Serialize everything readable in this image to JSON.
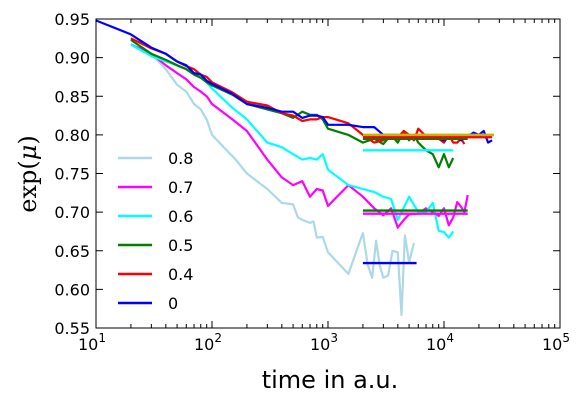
{
  "chart_data": {
    "type": "line",
    "xscale": "log",
    "xlim": [
      10,
      100000
    ],
    "ylim": [
      0.55,
      0.95
    ],
    "xlabel": "time in a.u.",
    "ylabel": "exp(μ)",
    "xticks": [
      {
        "value": 10,
        "label": "10",
        "exp": "1"
      },
      {
        "value": 100,
        "label": "10",
        "exp": "2"
      },
      {
        "value": 1000,
        "label": "10",
        "exp": "3"
      },
      {
        "value": 10000,
        "label": "10",
        "exp": "4"
      },
      {
        "value": 100000,
        "label": "10",
        "exp": "5"
      }
    ],
    "yticks": [
      {
        "value": 0.55,
        "label": "0.55"
      },
      {
        "value": 0.6,
        "label": "0.60"
      },
      {
        "value": 0.65,
        "label": "0.65"
      },
      {
        "value": 0.7,
        "label": "0.70"
      },
      {
        "value": 0.75,
        "label": "0.75"
      },
      {
        "value": 0.8,
        "label": "0.80"
      },
      {
        "value": 0.85,
        "label": "0.85"
      },
      {
        "value": 0.9,
        "label": "0.90"
      },
      {
        "value": 0.95,
        "label": "0.95"
      }
    ],
    "grid": false,
    "legend_position": "lower-left",
    "series": [
      {
        "name": "0.8",
        "color": "#add8e6",
        "x": [
          20,
          30,
          40,
          50,
          60,
          70,
          80,
          90,
          100,
          130,
          160,
          200,
          300,
          400,
          500,
          550,
          600,
          700,
          750,
          800,
          900,
          1000,
          1500,
          2000,
          2200,
          2400,
          2600,
          2800,
          3000,
          3300,
          3600,
          4000,
          4300,
          4600,
          5000,
          5500
        ],
        "y": [
          0.917,
          0.905,
          0.885,
          0.865,
          0.856,
          0.84,
          0.833,
          0.82,
          0.8,
          0.782,
          0.768,
          0.75,
          0.73,
          0.712,
          0.71,
          0.693,
          0.69,
          0.686,
          0.688,
          0.667,
          0.668,
          0.648,
          0.62,
          0.673,
          0.632,
          0.615,
          0.663,
          0.63,
          0.615,
          0.618,
          0.65,
          0.648,
          0.567,
          0.67,
          0.635,
          0.66
        ]
      },
      {
        "name": "0.7",
        "color": "#ff00ff",
        "x": [
          20,
          30,
          40,
          50,
          60,
          70,
          80,
          90,
          100,
          150,
          200,
          300,
          400,
          500,
          600,
          700,
          800,
          900,
          1000,
          1500,
          2000,
          2500,
          3000,
          3500,
          4000,
          4500,
          5000,
          6000,
          7000,
          8000,
          9000,
          10000,
          11000,
          12000,
          13000,
          14000,
          15000,
          16000
        ],
        "y": [
          0.917,
          0.905,
          0.89,
          0.88,
          0.872,
          0.862,
          0.856,
          0.85,
          0.84,
          0.82,
          0.805,
          0.768,
          0.745,
          0.735,
          0.74,
          0.72,
          0.73,
          0.728,
          0.708,
          0.735,
          0.72,
          0.705,
          0.696,
          0.705,
          0.68,
          0.69,
          0.697,
          0.698,
          0.705,
          0.7,
          0.695,
          0.705,
          0.683,
          0.693,
          0.713,
          0.707,
          0.7,
          0.722
        ]
      },
      {
        "name": "0.6",
        "color": "#00ffff",
        "x": [
          20,
          30,
          40,
          50,
          60,
          70,
          80,
          90,
          100,
          150,
          200,
          300,
          400,
          500,
          600,
          700,
          800,
          900,
          1000,
          1500,
          2000,
          2500,
          3000,
          3500,
          4000,
          5000,
          6000,
          7000,
          8000,
          9000,
          10000,
          11000,
          12000
        ],
        "y": [
          0.917,
          0.902,
          0.895,
          0.89,
          0.885,
          0.88,
          0.874,
          0.868,
          0.86,
          0.835,
          0.82,
          0.79,
          0.784,
          0.775,
          0.768,
          0.77,
          0.768,
          0.775,
          0.755,
          0.735,
          0.73,
          0.726,
          0.72,
          0.717,
          0.69,
          0.72,
          0.7,
          0.7,
          0.712,
          0.676,
          0.674,
          0.667,
          0.675
        ]
      },
      {
        "name": "0.5",
        "color": "#008000",
        "x": [
          20,
          30,
          40,
          50,
          60,
          70,
          80,
          90,
          100,
          150,
          200,
          300,
          400,
          500,
          600,
          700,
          800,
          900,
          1000,
          1500,
          2000,
          2500,
          3000,
          3500,
          4000,
          4500,
          5000,
          5500,
          6000,
          7000,
          8000,
          9000,
          10000,
          11000,
          12000
        ],
        "y": [
          0.923,
          0.905,
          0.897,
          0.89,
          0.885,
          0.878,
          0.874,
          0.868,
          0.864,
          0.852,
          0.84,
          0.833,
          0.828,
          0.822,
          0.83,
          0.826,
          0.826,
          0.82,
          0.808,
          0.8,
          0.79,
          0.795,
          0.788,
          0.8,
          0.79,
          0.805,
          0.793,
          0.8,
          0.79,
          0.78,
          0.775,
          0.758,
          0.775,
          0.758,
          0.77
        ]
      },
      {
        "name": "0.4",
        "color": "#ff0000",
        "x": [
          20,
          30,
          40,
          50,
          60,
          70,
          80,
          90,
          100,
          150,
          200,
          300,
          400,
          500,
          600,
          700,
          800,
          900,
          1000,
          1500,
          2000,
          2500,
          3000,
          3500,
          4000,
          4500,
          5000,
          5500,
          6000,
          7000,
          8000,
          9000,
          10000,
          11000,
          12000,
          13000,
          14000,
          15000
        ],
        "y": [
          0.925,
          0.912,
          0.905,
          0.895,
          0.889,
          0.885,
          0.878,
          0.875,
          0.868,
          0.855,
          0.843,
          0.838,
          0.828,
          0.825,
          0.818,
          0.82,
          0.82,
          0.823,
          0.823,
          0.815,
          0.8,
          0.79,
          0.793,
          0.8,
          0.797,
          0.805,
          0.8,
          0.793,
          0.808,
          0.798,
          0.8,
          0.795,
          0.79,
          0.8,
          0.79,
          0.79,
          0.795,
          0.788
        ]
      },
      {
        "name": "0",
        "color": "#0000ff",
        "x": [
          10,
          20,
          30,
          40,
          50,
          60,
          70,
          80,
          90,
          100,
          150,
          200,
          300,
          400,
          500,
          600,
          700,
          800,
          900,
          1000,
          1500,
          2000,
          2500,
          3000,
          4000,
          5000,
          6000,
          7000,
          8000,
          10000,
          12000,
          14000,
          16000,
          18000,
          20000,
          22000,
          24000,
          26000
        ],
        "y": [
          0.948,
          0.93,
          0.913,
          0.905,
          0.895,
          0.89,
          0.88,
          0.878,
          0.87,
          0.866,
          0.853,
          0.84,
          0.835,
          0.83,
          0.83,
          0.822,
          0.825,
          0.825,
          0.823,
          0.813,
          0.813,
          0.81,
          0.81,
          0.8,
          0.8,
          0.795,
          0.795,
          0.795,
          0.798,
          0.793,
          0.8,
          0.793,
          0.798,
          0.803,
          0.8,
          0.805,
          0.79,
          0.793
        ]
      }
    ],
    "plateaus": [
      {
        "color": "#0000ff",
        "x": [
          2000,
          5800
        ],
        "y": 0.634
      },
      {
        "color": "#ff00ff",
        "x": [
          2000,
          16000
        ],
        "y": 0.698
      },
      {
        "color": "#008000",
        "x": [
          2000,
          16000
        ],
        "y": 0.702
      },
      {
        "color": "#00ffff",
        "x": [
          2000,
          12000
        ],
        "y": 0.78
      },
      {
        "color": "#008000",
        "x": [
          2000,
          16000
        ],
        "y": 0.795
      },
      {
        "color": "#ff0000",
        "x": [
          2000,
          26000
        ],
        "y": 0.797
      },
      {
        "color": "#c8b400",
        "x": [
          2000,
          27000
        ],
        "y": 0.8
      }
    ]
  }
}
